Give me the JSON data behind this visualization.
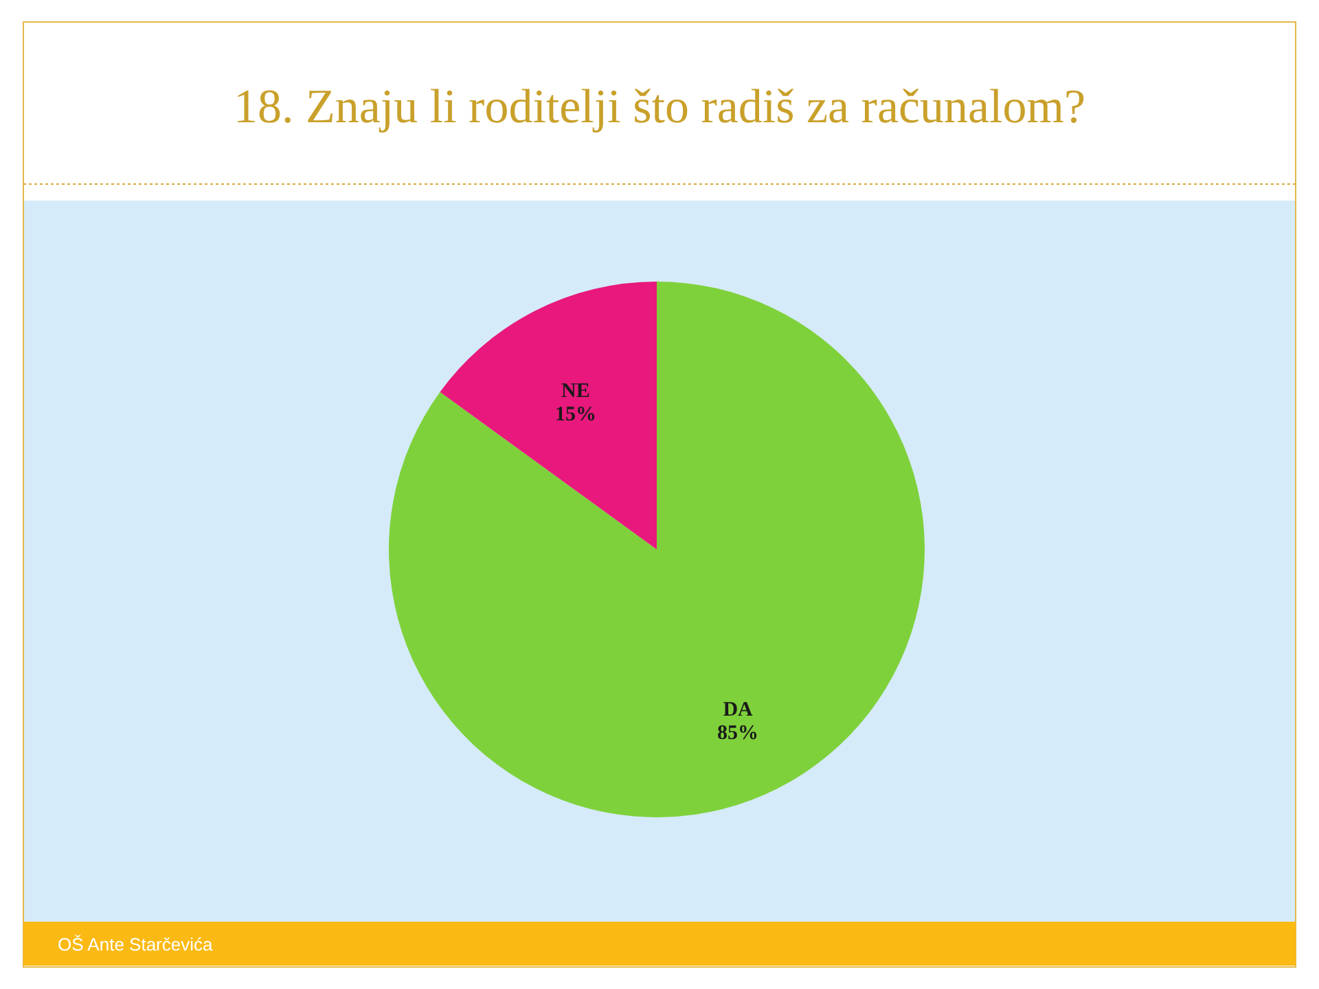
{
  "chart_data": {
    "type": "pie",
    "title": "18. Znaju li roditelji što radiš za računalom?",
    "categories": [
      "DA",
      "NE"
    ],
    "values": [
      85,
      15
    ],
    "colors": [
      "#7fd13b",
      "#e8187c"
    ],
    "value_labels": [
      "85%",
      "15%"
    ],
    "annotations": [
      "OŠ Ante Starčevića"
    ]
  }
}
